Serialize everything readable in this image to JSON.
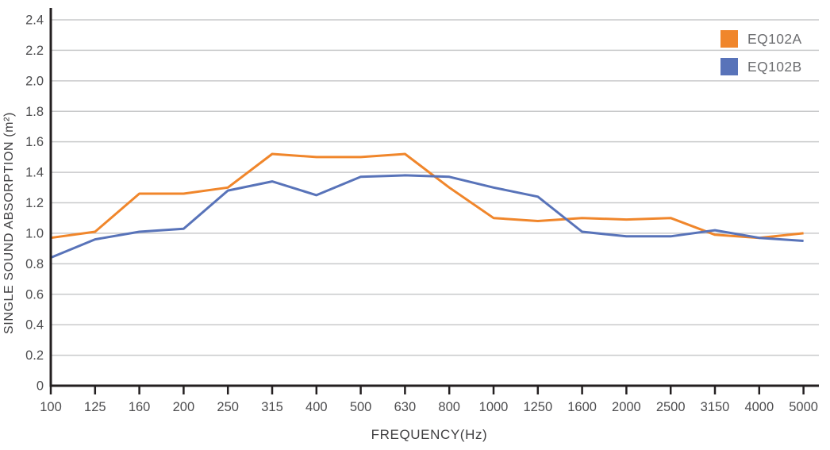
{
  "chart_data": {
    "type": "line",
    "title": "",
    "xlabel": "FREQUENCY(Hz)",
    "ylabel": "SINGLE SOUND ABSORPTION (m²)",
    "categories": [
      "100",
      "125",
      "160",
      "200",
      "250",
      "315",
      "400",
      "500",
      "630",
      "800",
      "1000",
      "1250",
      "1600",
      "2000",
      "2500",
      "3150",
      "4000",
      "5000"
    ],
    "y_tick_labels": [
      "0",
      "0.2",
      "0.4",
      "0.6",
      "0.8",
      "1.0",
      "1.2",
      "1.4",
      "1.6",
      "1.8",
      "2.0",
      "2.2",
      "2.4"
    ],
    "ylim": [
      0,
      2.4
    ],
    "grid": true,
    "legend_position": "top-right",
    "series": [
      {
        "name": "EQ102A",
        "color": "#F0862B",
        "values": [
          0.97,
          1.01,
          1.26,
          1.26,
          1.3,
          1.52,
          1.5,
          1.5,
          1.52,
          1.3,
          1.1,
          1.08,
          1.1,
          1.09,
          1.1,
          0.99,
          0.97,
          1.0
        ]
      },
      {
        "name": "EQ102B",
        "color": "#5873B9",
        "values": [
          0.84,
          0.96,
          1.01,
          1.03,
          1.28,
          1.34,
          1.25,
          1.37,
          1.38,
          1.37,
          1.3,
          1.24,
          1.01,
          0.98,
          0.98,
          1.02,
          0.97,
          0.95
        ]
      }
    ],
    "style": {
      "gridline_color": "#C9CACB",
      "axis_color": "#231F20",
      "tick_label_color": "#4D4D4F",
      "axis_title_color": "#414042",
      "legend_text_color": "#6D6E71"
    }
  }
}
